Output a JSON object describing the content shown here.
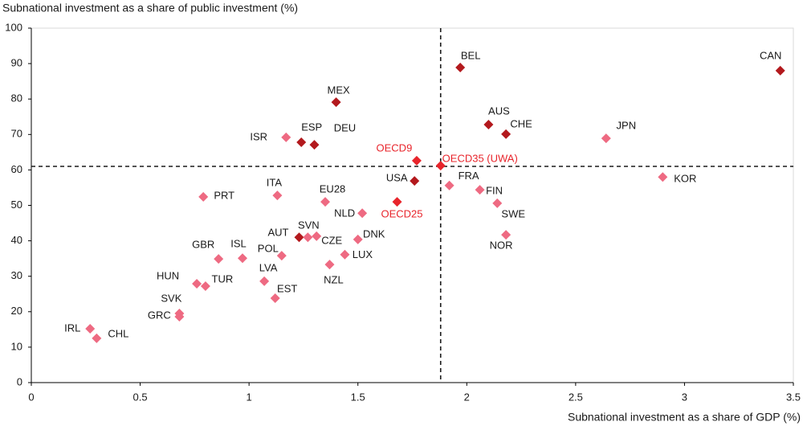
{
  "chart_data": {
    "type": "scatter",
    "y_label": "Subnational investment as a share of public investment (%)",
    "x_label": "Subnational investment as a share of GDP (%)",
    "xlim": [
      0,
      3.5
    ],
    "ylim": [
      0,
      100
    ],
    "xticks": [
      0,
      0.5,
      1,
      1.5,
      2,
      2.5,
      3,
      3.5
    ],
    "yticks": [
      0,
      10,
      20,
      30,
      40,
      50,
      60,
      70,
      80,
      90,
      100
    ],
    "ref_lines": {
      "x": 1.88,
      "y": 61,
      "color": "#1a1a1a"
    },
    "points": [
      {
        "label": "CAN",
        "x": 3.44,
        "y": 88.0,
        "color": "#b3191d"
      },
      {
        "label": "BEL",
        "x": 1.97,
        "y": 88.9,
        "color": "#b3191d"
      },
      {
        "label": "MEX",
        "x": 1.4,
        "y": 79.1,
        "color": "#b3191d"
      },
      {
        "label": "AUS",
        "x": 2.1,
        "y": 72.8,
        "color": "#b3191d"
      },
      {
        "label": "CHE",
        "x": 2.18,
        "y": 70.1,
        "color": "#b3191d"
      },
      {
        "label": "JPN",
        "x": 2.64,
        "y": 68.9,
        "color": "#ee6a82"
      },
      {
        "label": "ISR",
        "x": 1.17,
        "y": 69.2,
        "color": "#ee6a82"
      },
      {
        "label": "ESP",
        "x": 1.24,
        "y": 67.8,
        "color": "#b3191d"
      },
      {
        "label": "DEU",
        "x": 1.3,
        "y": 67.1,
        "color": "#b3191d"
      },
      {
        "label": "OECD9",
        "x": 1.77,
        "y": 62.6,
        "color": "#e8242b",
        "label_color": "#e8242b"
      },
      {
        "label": "OECD35 (UWA)",
        "x": 1.88,
        "y": 61.2,
        "color": "#e8242b",
        "label_color": "#e8242b"
      },
      {
        "label": "KOR",
        "x": 2.9,
        "y": 58.0,
        "color": "#ee6a82"
      },
      {
        "label": "USA",
        "x": 1.76,
        "y": 56.9,
        "color": "#b3191d"
      },
      {
        "label": "FRA",
        "x": 1.92,
        "y": 55.6,
        "color": "#ee6a82"
      },
      {
        "label": "FIN",
        "x": 2.06,
        "y": 54.4,
        "color": "#ee6a82"
      },
      {
        "label": "ITA",
        "x": 1.13,
        "y": 52.8,
        "color": "#ee6a82"
      },
      {
        "label": "PRT",
        "x": 0.79,
        "y": 52.4,
        "color": "#ee6a82"
      },
      {
        "label": "OECD25",
        "x": 1.68,
        "y": 51.0,
        "color": "#e8242b",
        "label_color": "#e8242b"
      },
      {
        "label": "EU28",
        "x": 1.35,
        "y": 51.0,
        "color": "#ee6a82"
      },
      {
        "label": "SWE",
        "x": 2.14,
        "y": 50.6,
        "color": "#ee6a82"
      },
      {
        "label": "NLD",
        "x": 1.52,
        "y": 47.8,
        "color": "#ee6a82"
      },
      {
        "label": "NOR",
        "x": 2.18,
        "y": 41.7,
        "color": "#ee6a82"
      },
      {
        "label": "DNK",
        "x": 1.5,
        "y": 40.4,
        "color": "#ee6a82"
      },
      {
        "label": "AUT",
        "x": 1.23,
        "y": 41.0,
        "color": "#b3191d"
      },
      {
        "label": "SVN",
        "x": 1.27,
        "y": 41.0,
        "color": "#ee6a82"
      },
      {
        "label": "CZE",
        "x": 1.31,
        "y": 41.3,
        "color": "#ee6a82"
      },
      {
        "label": "POL",
        "x": 1.15,
        "y": 35.8,
        "color": "#ee6a82"
      },
      {
        "label": "LUX",
        "x": 1.44,
        "y": 36.1,
        "color": "#ee6a82"
      },
      {
        "label": "GBR",
        "x": 0.86,
        "y": 34.9,
        "color": "#ee6a82"
      },
      {
        "label": "ISL",
        "x": 0.97,
        "y": 35.1,
        "color": "#ee6a82"
      },
      {
        "label": "NZL",
        "x": 1.37,
        "y": 33.3,
        "color": "#ee6a82"
      },
      {
        "label": "LVA",
        "x": 1.07,
        "y": 28.6,
        "color": "#ee6a82"
      },
      {
        "label": "HUN",
        "x": 0.76,
        "y": 27.9,
        "color": "#ee6a82"
      },
      {
        "label": "TUR",
        "x": 0.8,
        "y": 27.2,
        "color": "#ee6a82"
      },
      {
        "label": "EST",
        "x": 1.12,
        "y": 23.8,
        "color": "#ee6a82"
      },
      {
        "label": "SVK",
        "x": 0.68,
        "y": 19.5,
        "color": "#ee6a82"
      },
      {
        "label": "GRC",
        "x": 0.68,
        "y": 18.6,
        "color": "#ee6a82"
      },
      {
        "label": "IRL",
        "x": 0.27,
        "y": 15.2,
        "color": "#ee6a82"
      },
      {
        "label": "CHL",
        "x": 0.3,
        "y": 12.5,
        "color": "#ee6a82"
      }
    ]
  }
}
